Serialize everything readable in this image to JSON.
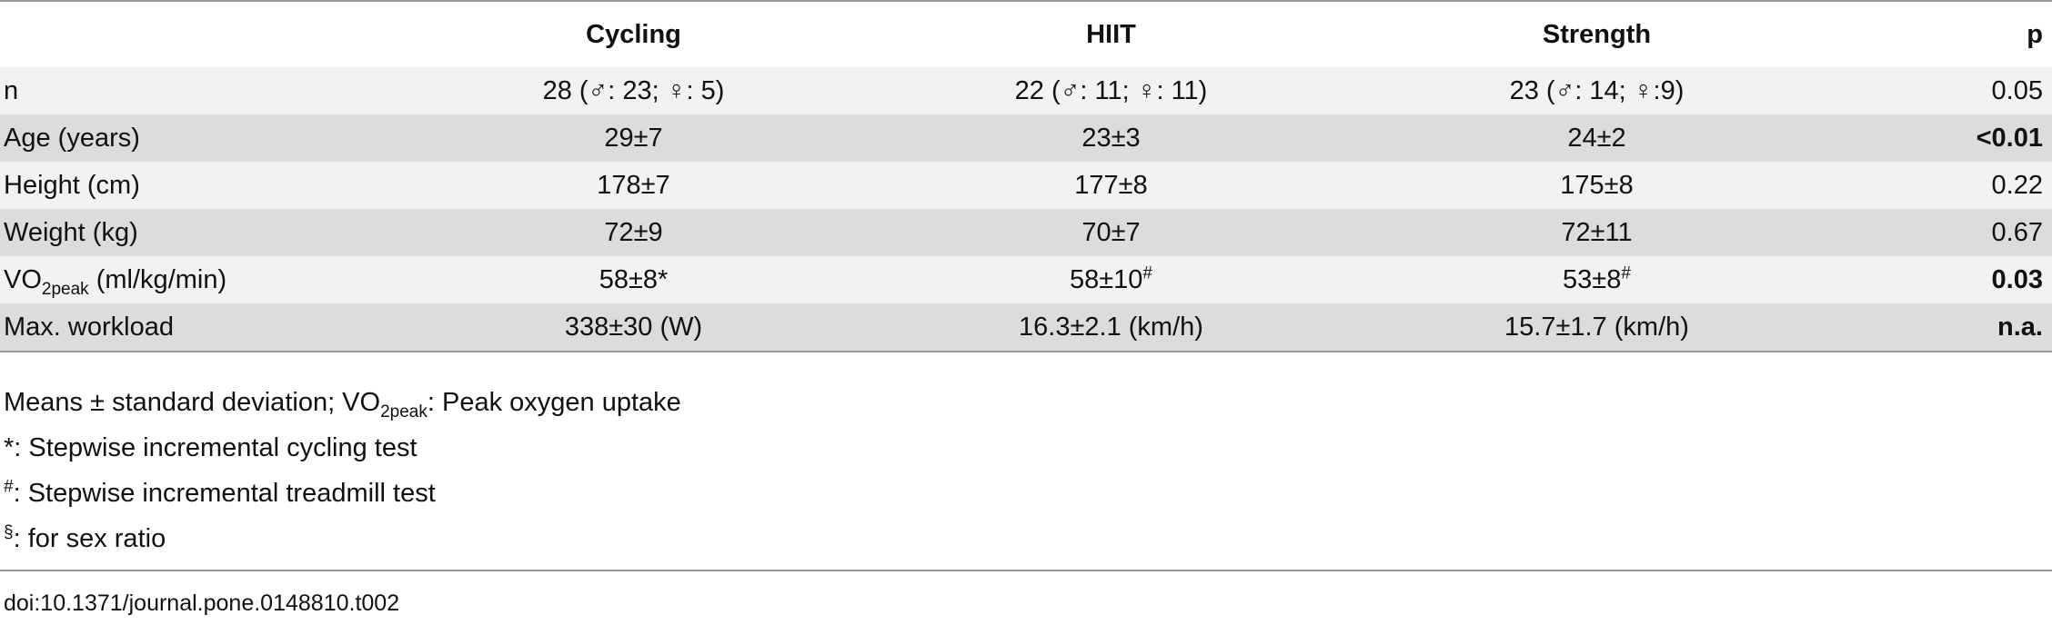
{
  "table": {
    "columns": [
      "Cycling",
      "HIIT",
      "Strength",
      "p"
    ],
    "rows": [
      {
        "label": "n",
        "cells": [
          "28 (♂: 23; ♀: 5)",
          "22 (♂: 11; ♀: 11)",
          "23 (♂: 14; ♀:9)"
        ],
        "p": "0.05"
      },
      {
        "label": "Age (years)",
        "cells": [
          "29±7",
          "23±3",
          "24±2"
        ],
        "p": {
          "text": "<0.01",
          "bold": true
        }
      },
      {
        "label": "Height (cm)",
        "cells": [
          "178±7",
          "177±8",
          "175±8"
        ],
        "p": "0.22"
      },
      {
        "label": "Weight (kg)",
        "cells": [
          "72±9",
          "70±7",
          "72±11"
        ],
        "p": "0.67"
      },
      {
        "label": {
          "text": "VO",
          "sub": "2peak",
          "after": " (ml/kg/min)"
        },
        "cells": [
          "58±8*",
          {
            "text": "58±10",
            "sup": "#"
          },
          {
            "text": "53±8",
            "sup": "#"
          }
        ],
        "p": {
          "text": "0.03",
          "bold": true
        }
      },
      {
        "label": "Max. workload",
        "cells": [
          "338±30 (W)",
          "16.3±2.1 (km/h)",
          "15.7±1.7 (km/h)"
        ],
        "p": {
          "text": "n.a.",
          "bold": true
        }
      }
    ]
  },
  "footnotes": [
    {
      "text": "Means ± standard deviation; VO",
      "sub": "2peak",
      "after": ": Peak oxygen uptake"
    },
    "*: Stepwise incremental cycling test",
    {
      "sup": "#",
      "after": ": Stepwise incremental treadmill test"
    },
    {
      "sup": "§",
      "after": ": for sex ratio"
    }
  ],
  "doi": "doi:10.1371/journal.pone.0148810.t002"
}
